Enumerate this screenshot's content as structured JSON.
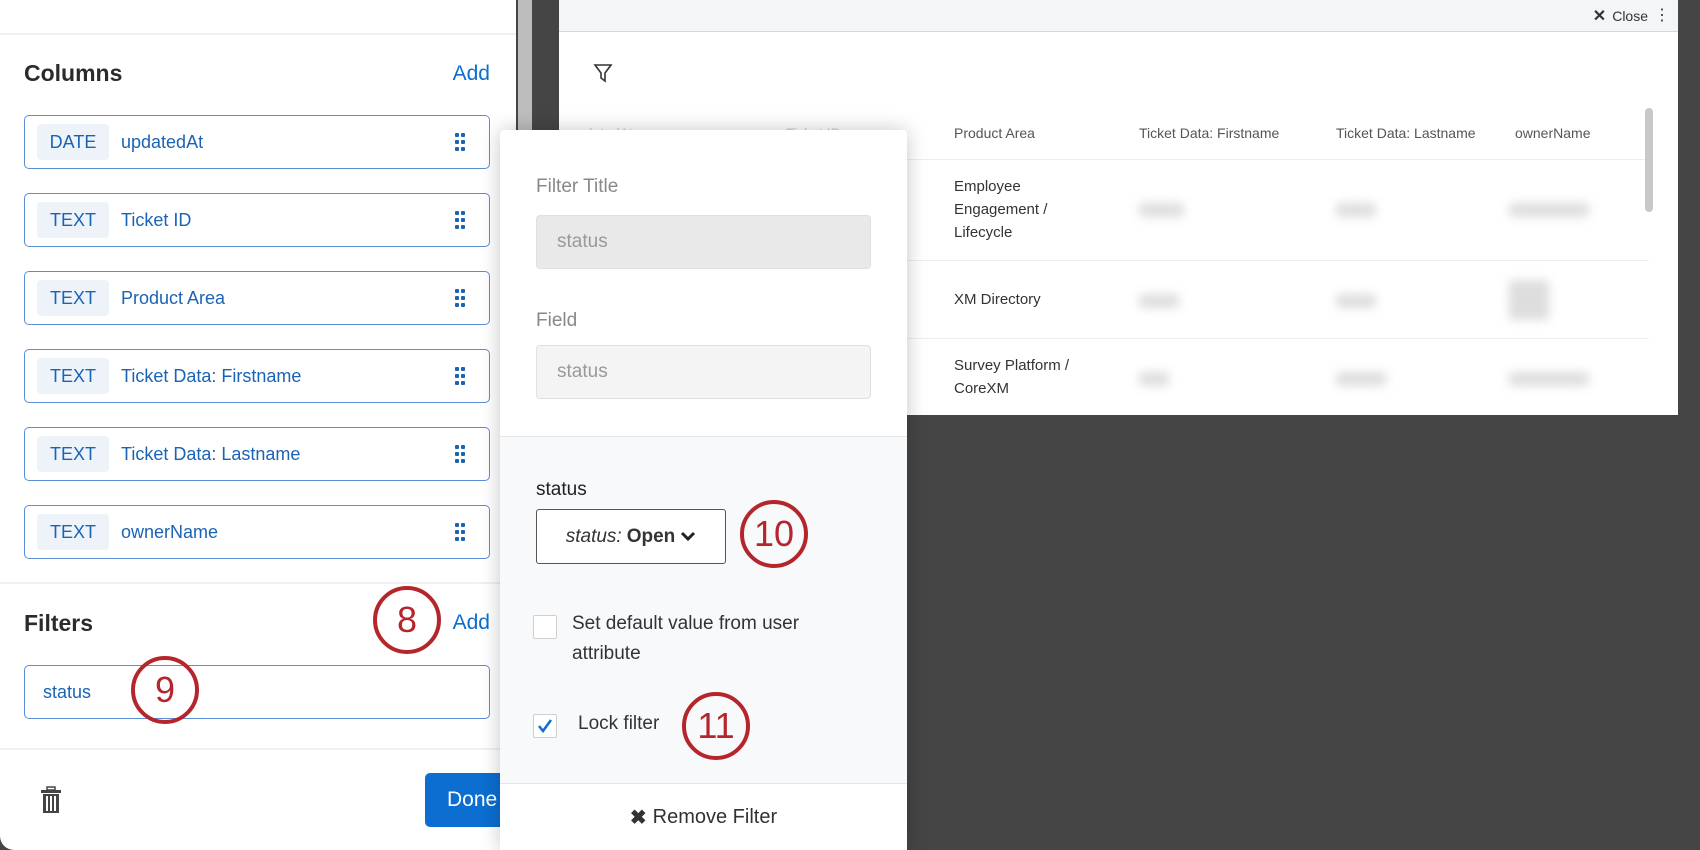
{
  "left_panel": {
    "columns_title": "Columns",
    "columns_add": "Add",
    "columns": [
      {
        "type": "DATE",
        "name": "updatedAt"
      },
      {
        "type": "TEXT",
        "name": "Ticket ID"
      },
      {
        "type": "TEXT",
        "name": "Product Area"
      },
      {
        "type": "TEXT",
        "name": "Ticket Data: Firstname"
      },
      {
        "type": "TEXT",
        "name": "Ticket Data: Lastname"
      },
      {
        "type": "TEXT",
        "name": "ownerName"
      }
    ],
    "filters_title": "Filters",
    "filters_add": "Add",
    "filters": [
      "status"
    ],
    "done_label": "Done",
    "delete_icon": "trash-icon"
  },
  "modal": {
    "close_label": "Close",
    "headers": [
      "updatedAt",
      "Ticket ID",
      "Product Area",
      "Ticket Data: Firstname",
      "Ticket Data: Lastname",
      "ownerName"
    ],
    "rows": [
      {
        "product_area": "Employee Engagement / Lifecycle"
      },
      {
        "product_area": "XM Directory"
      },
      {
        "product_area": "Survey Platform / CoreXM"
      }
    ]
  },
  "popover": {
    "filter_title_label": "Filter Title",
    "filter_title_value": "status",
    "field_label": "Field",
    "field_value": "status",
    "value_label": "status",
    "dropdown_prefix": "status:",
    "dropdown_value": "Open",
    "default_from_user_label": "Set default value from user attribute",
    "default_from_user_checked": false,
    "lock_filter_label": "Lock filter",
    "lock_filter_checked": true,
    "remove_label": "Remove Filter"
  },
  "annotations": [
    "8",
    "9",
    "10",
    "11"
  ],
  "colors": {
    "accent": "#0b6ed0",
    "annotation": "#b5252c",
    "backdrop": "#454545"
  }
}
